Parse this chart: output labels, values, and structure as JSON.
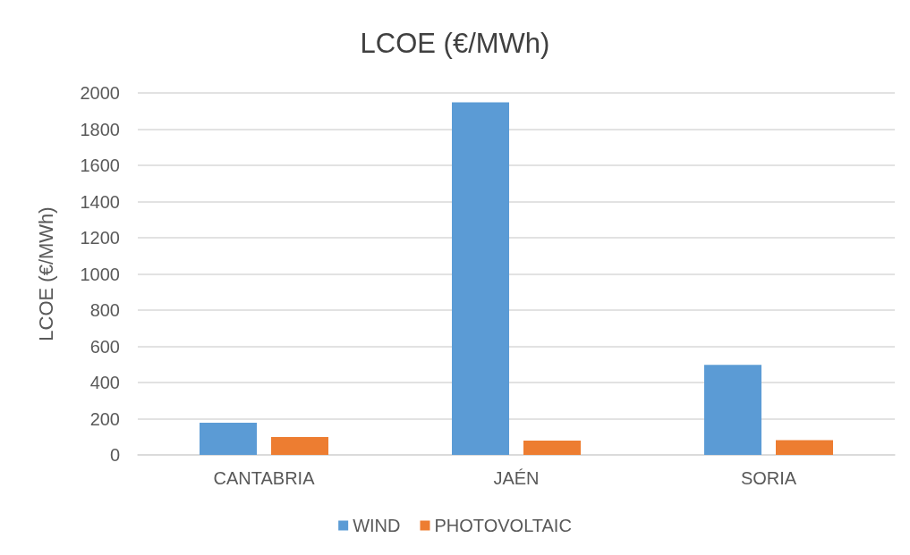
{
  "chart_data": {
    "type": "bar",
    "title": "LCOE (€/MWh)",
    "ylabel": "LCOE (€/MWh)",
    "categories": [
      "CANTABRIA",
      "JAÉN",
      "SORIA"
    ],
    "series": [
      {
        "name": "WIND",
        "color": "#5b9bd5",
        "values": [
          178,
          1948,
          497
        ]
      },
      {
        "name": "PHOTOVOLTAIC",
        "color": "#ed7d31",
        "values": [
          99,
          79,
          82
        ]
      }
    ],
    "ylim": [
      0,
      2000
    ],
    "yticks": [
      0,
      200,
      400,
      600,
      800,
      1000,
      1200,
      1400,
      1600,
      1800,
      2000
    ],
    "grid": "y",
    "legend": "bottom"
  }
}
